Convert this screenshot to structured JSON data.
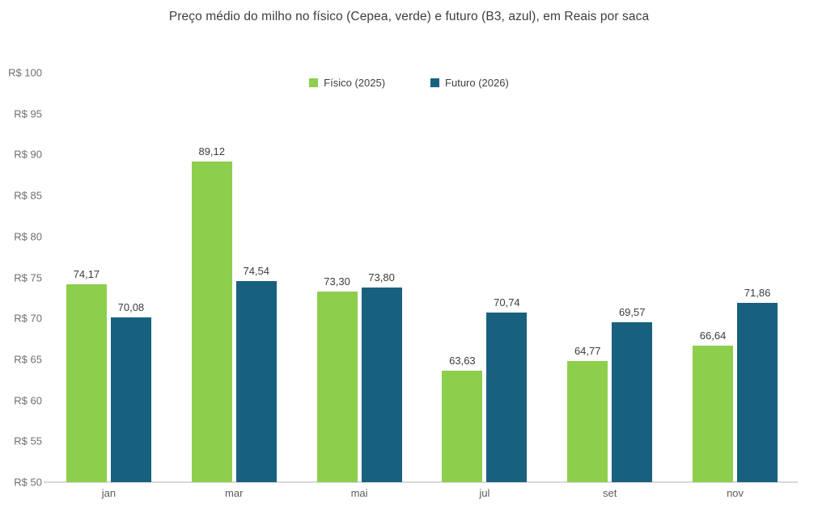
{
  "chart_data": {
    "type": "bar",
    "title": "Preço médio do milho no físico (Cepea, verde) e futuro (B3, azul), em Reais por saca",
    "categories": [
      "jan",
      "mar",
      "mai",
      "jul",
      "set",
      "nov"
    ],
    "series": [
      {
        "name": "Físico (2025)",
        "color": "#8dce4c",
        "values": [
          74.17,
          89.12,
          73.3,
          63.63,
          64.77,
          66.64
        ]
      },
      {
        "name": "Futuro (2026)",
        "color": "#18617e",
        "values": [
          70.08,
          74.54,
          73.8,
          70.74,
          69.57,
          71.86
        ]
      }
    ],
    "value_labels": [
      [
        "74,17",
        "89,12",
        "73,30",
        "63,63",
        "64,77",
        "66,64"
      ],
      [
        "70,08",
        "74,54",
        "73,80",
        "70,74",
        "69,57",
        "71,86"
      ]
    ],
    "xlabel": "",
    "ylabel": "",
    "y_axis": {
      "min": 50,
      "max": 100,
      "step": 5,
      "ticks": [
        "R$ 100",
        "R$ 95",
        "R$ 90",
        "R$ 85",
        "R$ 80",
        "R$ 75",
        "R$ 70",
        "R$ 65",
        "R$ 60",
        "R$ 55",
        "R$ 50"
      ]
    },
    "legend": {
      "position": "top",
      "items": [
        {
          "label": "Físico (2025)",
          "color": "#8dce4c"
        },
        {
          "label": "Futuro (2026)",
          "color": "#18617e"
        }
      ]
    },
    "grid": false,
    "colors": {
      "fisico_green": "#8dce4c",
      "futuro_blue": "#18617e",
      "axis_line": "#d9d9d9",
      "title_text": "#3d3d3d",
      "tick_text": "#6e6e6e",
      "value_label_text": "#3c3c3c",
      "category_text": "#5c5c5c",
      "background": "#ffffff"
    }
  }
}
